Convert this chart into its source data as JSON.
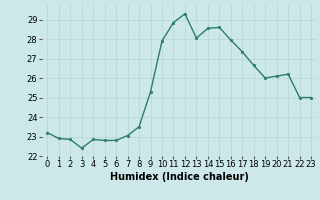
{
  "x": [
    0,
    1,
    2,
    3,
    4,
    5,
    6,
    7,
    8,
    9,
    10,
    11,
    12,
    13,
    14,
    15,
    16,
    17,
    18,
    19,
    20,
    21,
    22,
    23
  ],
  "y": [
    23.2,
    22.9,
    22.85,
    22.4,
    22.85,
    22.8,
    22.8,
    23.05,
    23.5,
    25.3,
    27.9,
    28.85,
    29.3,
    28.05,
    28.55,
    28.6,
    27.95,
    27.35,
    26.65,
    26.0,
    26.1,
    26.2,
    25.0,
    25.0
  ],
  "title": "",
  "xlabel": "Humidex (Indice chaleur)",
  "ylabel": "",
  "xlim": [
    -0.5,
    23.5
  ],
  "ylim": [
    22,
    29.8
  ],
  "yticks": [
    22,
    23,
    24,
    25,
    26,
    27,
    28,
    29
  ],
  "xticks": [
    0,
    1,
    2,
    3,
    4,
    5,
    6,
    7,
    8,
    9,
    10,
    11,
    12,
    13,
    14,
    15,
    16,
    17,
    18,
    19,
    20,
    21,
    22,
    23
  ],
  "line_color": "#2e7d6e",
  "marker_color": "#2e7d6e",
  "bg_color": "#cce8e8",
  "grid_color": "#b8d4d4",
  "tick_fontsize": 6,
  "xlabel_fontsize": 7,
  "marker_size": 2,
  "line_width": 1.0
}
